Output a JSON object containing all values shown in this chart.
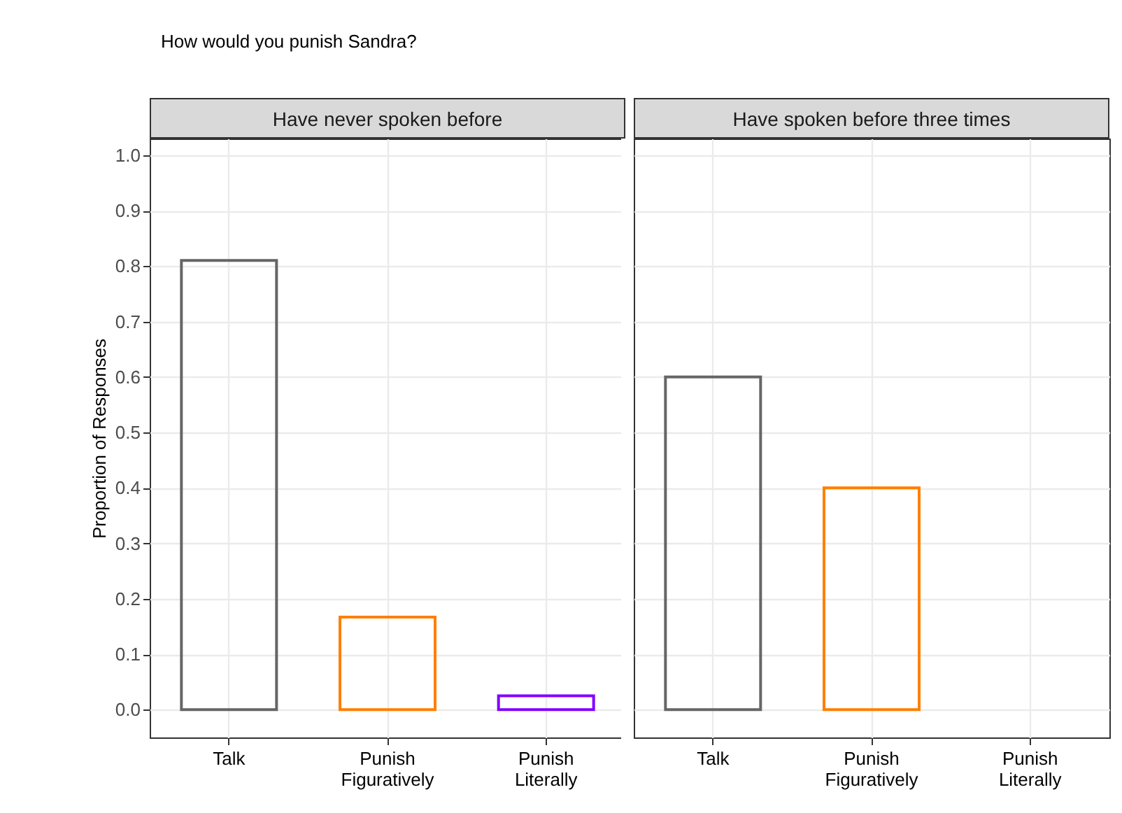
{
  "chart_data": [
    {
      "type": "bar",
      "title": "How would you punish Sandra?",
      "subtitle": "Have never spoken before",
      "ylabel": "Proportion of Responses",
      "categories": [
        "Talk",
        "Punish Figuratively",
        "Punish Literally"
      ],
      "values": [
        0.81,
        0.167,
        0.025
      ],
      "colors": [
        "#666666",
        "#ff7f00",
        "#7f00ff"
      ],
      "ylim": [
        -0.05,
        1.03
      ],
      "yticks": [
        {
          "value": 0,
          "label": "0.0"
        },
        0.1,
        0.2,
        0.3,
        0.4,
        0.5,
        0.6,
        0.7,
        0.8,
        0.9,
        {
          "value": 1,
          "label": "1.0"
        }
      ],
      "grid": true
    },
    {
      "type": "bar",
      "subtitle": "Have spoken before three times",
      "categories": [
        "Talk",
        "Punish Figuratively",
        "Punish Literally"
      ],
      "values": [
        0.6,
        0.4,
        null
      ],
      "colors": [
        "#666666",
        "#ff7f00",
        null
      ],
      "ylim": [
        -0.05,
        1.03
      ],
      "yticks": [
        0,
        0.1,
        0.2,
        0.3,
        0.4,
        0.5,
        0.6,
        0.7,
        0.8,
        0.9,
        1
      ],
      "grid": true,
      "tick_labels": "x"
    }
  ]
}
